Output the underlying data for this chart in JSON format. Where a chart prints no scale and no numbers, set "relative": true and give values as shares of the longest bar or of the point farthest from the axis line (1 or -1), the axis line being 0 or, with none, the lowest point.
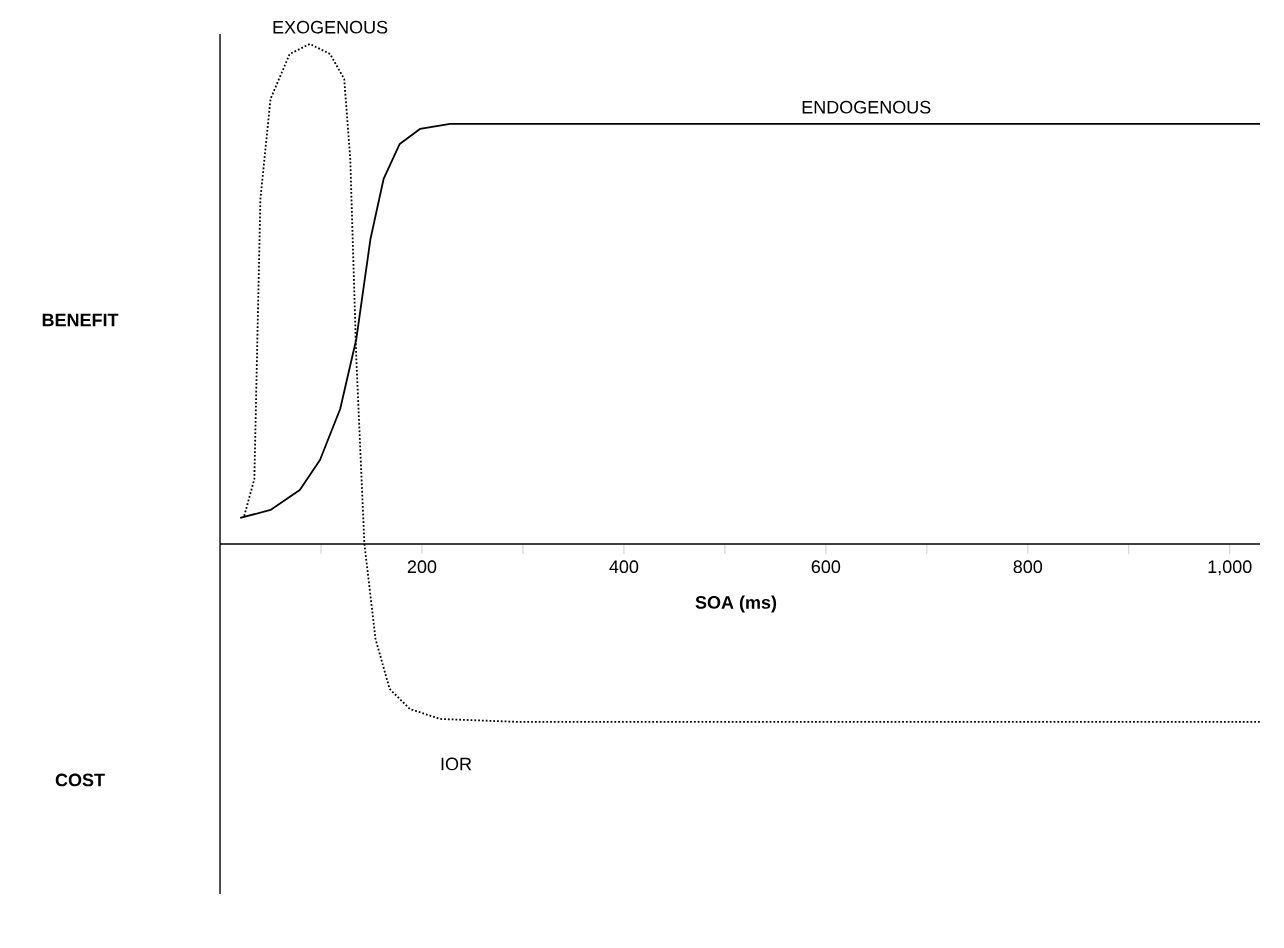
{
  "chart_data": {
    "type": "line",
    "xlabel": "SOA (ms)",
    "relative": true,
    "marker": "none",
    "xlim": [
      0,
      1030
    ],
    "xticks": [
      {
        "value": 100,
        "label": null
      },
      200,
      {
        "value": 300,
        "label": null
      },
      400,
      {
        "value": 500,
        "label": null
      },
      600,
      {
        "value": 700,
        "label": null
      },
      800,
      {
        "value": 900,
        "label": null
      },
      {
        "value": 1000,
        "label": "1,000"
      }
    ],
    "series": [
      {
        "name": "EXOGENOUS",
        "color": "#000000",
        "line_style": "dotted",
        "x": [
          24,
          34,
          40,
          50,
          69,
          89,
          109,
          123,
          129,
          135,
          143,
          154,
          168,
          188,
          218,
          297,
          1030
        ],
        "values": [
          0.056,
          0.13,
          0.69,
          0.89,
          0.98,
          1.0,
          0.98,
          0.93,
          0.77,
          0.37,
          0,
          -0.19,
          -0.29,
          -0.33,
          -0.35,
          -0.356,
          -0.356
        ]
      },
      {
        "name": "ENDOGENOUS",
        "color": "#000000",
        "line_style": "solid",
        "x": [
          20,
          50,
          79,
          99,
          119,
          135,
          149,
          162,
          178,
          198,
          228,
          257,
          1030
        ],
        "values": [
          0.052,
          0.068,
          0.108,
          0.168,
          0.27,
          0.41,
          0.61,
          0.73,
          0.8,
          0.83,
          0.84,
          0.84,
          0.84
        ]
      }
    ],
    "annotations": [
      "BENEFIT",
      "COST",
      "IOR"
    ]
  }
}
